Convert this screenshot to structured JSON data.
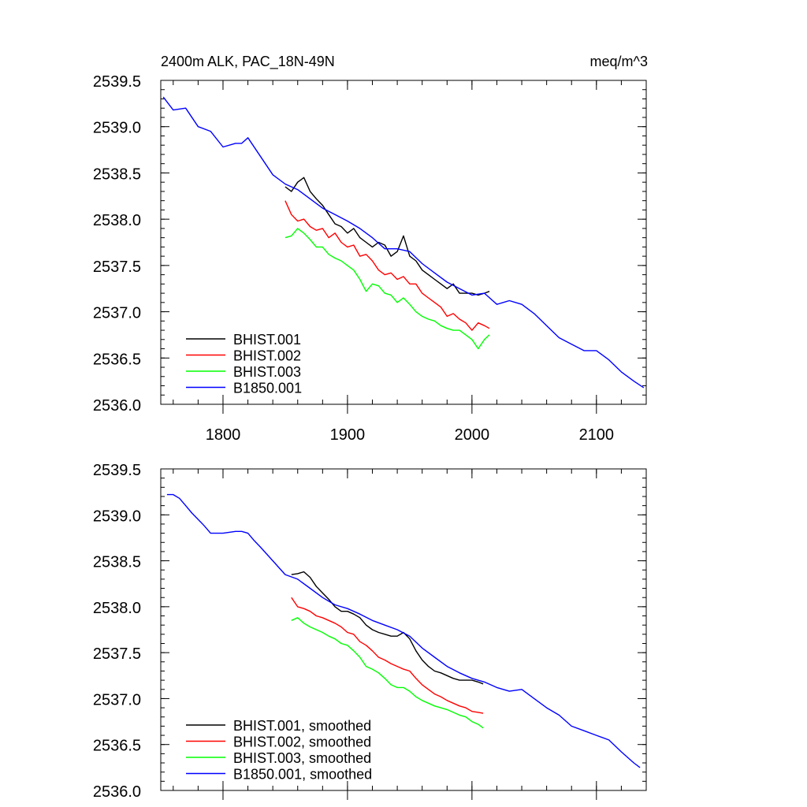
{
  "title_left": "2400m ALK, PAC_18N-49N",
  "title_right": "meq/m^3",
  "colors": {
    "BHIST.001": "#000000",
    "BHIST.002": "#ff0000",
    "BHIST.003": "#00ff00",
    "B1850.001": "#0000ff"
  },
  "chart_data": [
    {
      "type": "line",
      "title": "2400m ALK, PAC_18N-49N",
      "units": "meq/m^3",
      "xlim": [
        1750,
        2140
      ],
      "ylim": [
        2536.0,
        2539.5
      ],
      "xticks": [
        1800,
        1900,
        2000,
        2100
      ],
      "yticks": [
        2536.0,
        2536.5,
        2537.0,
        2537.5,
        2538.0,
        2538.5,
        2539.0,
        2539.5
      ],
      "legend_placement": "bottom-left",
      "series": [
        {
          "name": "BHIST.001",
          "color": "#000000",
          "x": [
            1850,
            1855,
            1860,
            1865,
            1870,
            1875,
            1880,
            1885,
            1890,
            1895,
            1900,
            1905,
            1910,
            1915,
            1920,
            1925,
            1930,
            1935,
            1940,
            1945,
            1950,
            1955,
            1960,
            1965,
            1970,
            1975,
            1980,
            1985,
            1990,
            1995,
            2000,
            2005,
            2010,
            2014
          ],
          "y": [
            2538.35,
            2538.3,
            2538.4,
            2538.45,
            2538.3,
            2538.22,
            2538.15,
            2538.05,
            2537.95,
            2537.92,
            2537.85,
            2537.9,
            2537.8,
            2537.75,
            2537.7,
            2537.75,
            2537.72,
            2537.6,
            2537.65,
            2537.82,
            2537.6,
            2537.55,
            2537.45,
            2537.4,
            2537.35,
            2537.3,
            2537.25,
            2537.3,
            2537.2,
            2537.2,
            2537.2,
            2537.18,
            2537.2,
            2537.22
          ]
        },
        {
          "name": "BHIST.002",
          "color": "#ff0000",
          "x": [
            1850,
            1855,
            1860,
            1865,
            1870,
            1875,
            1880,
            1885,
            1890,
            1895,
            1900,
            1905,
            1910,
            1915,
            1920,
            1925,
            1930,
            1935,
            1940,
            1945,
            1950,
            1955,
            1960,
            1965,
            1970,
            1975,
            1980,
            1985,
            1990,
            1995,
            2000,
            2005,
            2010,
            2014
          ],
          "y": [
            2538.2,
            2538.05,
            2537.98,
            2538.0,
            2537.92,
            2537.88,
            2537.9,
            2537.8,
            2537.85,
            2537.75,
            2537.7,
            2537.72,
            2537.6,
            2537.62,
            2537.55,
            2537.45,
            2537.4,
            2537.42,
            2537.35,
            2537.38,
            2537.3,
            2537.3,
            2537.2,
            2537.15,
            2537.1,
            2537.05,
            2536.95,
            2536.98,
            2536.92,
            2536.88,
            2536.8,
            2536.88,
            2536.85,
            2536.82
          ]
        },
        {
          "name": "BHIST.003",
          "color": "#00ff00",
          "x": [
            1850,
            1855,
            1860,
            1865,
            1870,
            1875,
            1880,
            1885,
            1890,
            1895,
            1900,
            1905,
            1910,
            1915,
            1920,
            1925,
            1930,
            1935,
            1940,
            1945,
            1950,
            1955,
            1960,
            1965,
            1970,
            1975,
            1980,
            1985,
            1990,
            1995,
            2000,
            2005,
            2010,
            2014
          ],
          "y": [
            2537.8,
            2537.82,
            2537.9,
            2537.85,
            2537.78,
            2537.7,
            2537.7,
            2537.62,
            2537.58,
            2537.55,
            2537.5,
            2537.45,
            2537.35,
            2537.22,
            2537.3,
            2537.28,
            2537.2,
            2537.18,
            2537.1,
            2537.15,
            2537.08,
            2537.0,
            2536.95,
            2536.92,
            2536.9,
            2536.85,
            2536.82,
            2536.8,
            2536.8,
            2536.75,
            2536.7,
            2536.6,
            2536.7,
            2536.75
          ]
        },
        {
          "name": "B1850.001",
          "color": "#0000ff",
          "x": [
            1752,
            1760,
            1770,
            1780,
            1790,
            1800,
            1810,
            1815,
            1820,
            1830,
            1840,
            1850,
            1860,
            1870,
            1880,
            1890,
            1900,
            1910,
            1920,
            1930,
            1940,
            1950,
            1960,
            1970,
            1980,
            1990,
            2000,
            2010,
            2020,
            2030,
            2040,
            2050,
            2060,
            2070,
            2080,
            2090,
            2100,
            2110,
            2120,
            2130,
            2138
          ],
          "y": [
            2539.32,
            2539.18,
            2539.2,
            2539.0,
            2538.95,
            2538.78,
            2538.82,
            2538.82,
            2538.88,
            2538.68,
            2538.48,
            2538.38,
            2538.32,
            2538.22,
            2538.12,
            2538.05,
            2537.98,
            2537.9,
            2537.8,
            2537.68,
            2537.68,
            2537.65,
            2537.52,
            2537.42,
            2537.32,
            2537.25,
            2537.18,
            2537.2,
            2537.08,
            2537.12,
            2537.08,
            2536.98,
            2536.85,
            2536.72,
            2536.65,
            2536.58,
            2536.58,
            2536.48,
            2536.35,
            2536.25,
            2536.18
          ]
        }
      ]
    },
    {
      "type": "line",
      "xlim": [
        1750,
        2140
      ],
      "ylim": [
        2536.0,
        2539.5
      ],
      "xticks": [
        1800,
        1900,
        2000,
        2100
      ],
      "yticks": [
        2536.0,
        2536.5,
        2537.0,
        2537.5,
        2538.0,
        2538.5,
        2539.0,
        2539.5
      ],
      "legend_placement": "bottom-left",
      "series": [
        {
          "name": "BHIST.001, smoothed",
          "color": "#000000",
          "x": [
            1855,
            1860,
            1865,
            1870,
            1875,
            1880,
            1885,
            1890,
            1895,
            1900,
            1905,
            1910,
            1915,
            1920,
            1925,
            1930,
            1935,
            1940,
            1945,
            1950,
            1955,
            1960,
            1965,
            1970,
            1975,
            1980,
            1985,
            1990,
            1995,
            2000,
            2005,
            2009
          ],
          "y": [
            2538.35,
            2538.36,
            2538.38,
            2538.32,
            2538.22,
            2538.15,
            2538.08,
            2538.0,
            2537.95,
            2537.95,
            2537.92,
            2537.88,
            2537.8,
            2537.75,
            2537.72,
            2537.7,
            2537.68,
            2537.68,
            2537.72,
            2537.65,
            2537.52,
            2537.42,
            2537.35,
            2537.3,
            2537.28,
            2537.25,
            2537.22,
            2537.2,
            2537.2,
            2537.2,
            2537.18,
            2537.16
          ]
        },
        {
          "name": "BHIST.002, smoothed",
          "color": "#ff0000",
          "x": [
            1855,
            1860,
            1865,
            1870,
            1875,
            1880,
            1885,
            1890,
            1895,
            1900,
            1905,
            1910,
            1915,
            1920,
            1925,
            1930,
            1935,
            1940,
            1945,
            1950,
            1955,
            1960,
            1965,
            1970,
            1975,
            1980,
            1985,
            1990,
            1995,
            2000,
            2005,
            2009
          ],
          "y": [
            2538.1,
            2538.0,
            2537.98,
            2537.95,
            2537.9,
            2537.88,
            2537.85,
            2537.82,
            2537.78,
            2537.72,
            2537.7,
            2537.62,
            2537.58,
            2537.52,
            2537.45,
            2537.42,
            2537.38,
            2537.35,
            2537.32,
            2537.3,
            2537.22,
            2537.15,
            2537.1,
            2537.05,
            2537.02,
            2536.98,
            2536.95,
            2536.92,
            2536.9,
            2536.86,
            2536.85,
            2536.84
          ]
        },
        {
          "name": "BHIST.003, smoothed",
          "color": "#00ff00",
          "x": [
            1855,
            1860,
            1865,
            1870,
            1875,
            1880,
            1885,
            1890,
            1895,
            1900,
            1905,
            1910,
            1915,
            1920,
            1925,
            1930,
            1935,
            1940,
            1945,
            1950,
            1955,
            1960,
            1965,
            1970,
            1975,
            1980,
            1985,
            1990,
            1995,
            2000,
            2005,
            2009
          ],
          "y": [
            2537.85,
            2537.88,
            2537.82,
            2537.78,
            2537.75,
            2537.72,
            2537.68,
            2537.65,
            2537.6,
            2537.58,
            2537.52,
            2537.45,
            2537.35,
            2537.32,
            2537.28,
            2537.22,
            2537.15,
            2537.12,
            2537.12,
            2537.08,
            2537.02,
            2536.98,
            2536.95,
            2536.92,
            2536.9,
            2536.88,
            2536.85,
            2536.82,
            2536.8,
            2536.75,
            2536.72,
            2536.68
          ]
        },
        {
          "name": "B1850.001, smoothed",
          "color": "#0000ff",
          "x": [
            1755,
            1760,
            1765,
            1770,
            1775,
            1780,
            1785,
            1790,
            1795,
            1800,
            1810,
            1815,
            1820,
            1825,
            1830,
            1840,
            1850,
            1860,
            1870,
            1880,
            1890,
            1900,
            1910,
            1920,
            1930,
            1940,
            1950,
            1960,
            1970,
            1980,
            1990,
            2000,
            2010,
            2020,
            2030,
            2040,
            2050,
            2060,
            2070,
            2080,
            2090,
            2100,
            2110,
            2120,
            2130,
            2135
          ],
          "y": [
            2539.22,
            2539.22,
            2539.18,
            2539.1,
            2539.02,
            2538.95,
            2538.88,
            2538.8,
            2538.8,
            2538.8,
            2538.82,
            2538.82,
            2538.8,
            2538.72,
            2538.65,
            2538.5,
            2538.35,
            2538.3,
            2538.2,
            2538.1,
            2538.02,
            2537.98,
            2537.92,
            2537.85,
            2537.8,
            2537.75,
            2537.68,
            2537.55,
            2537.45,
            2537.35,
            2537.28,
            2537.22,
            2537.18,
            2537.12,
            2537.08,
            2537.1,
            2537.0,
            2536.9,
            2536.82,
            2536.7,
            2536.65,
            2536.6,
            2536.55,
            2536.42,
            2536.3,
            2536.25
          ]
        }
      ]
    }
  ]
}
